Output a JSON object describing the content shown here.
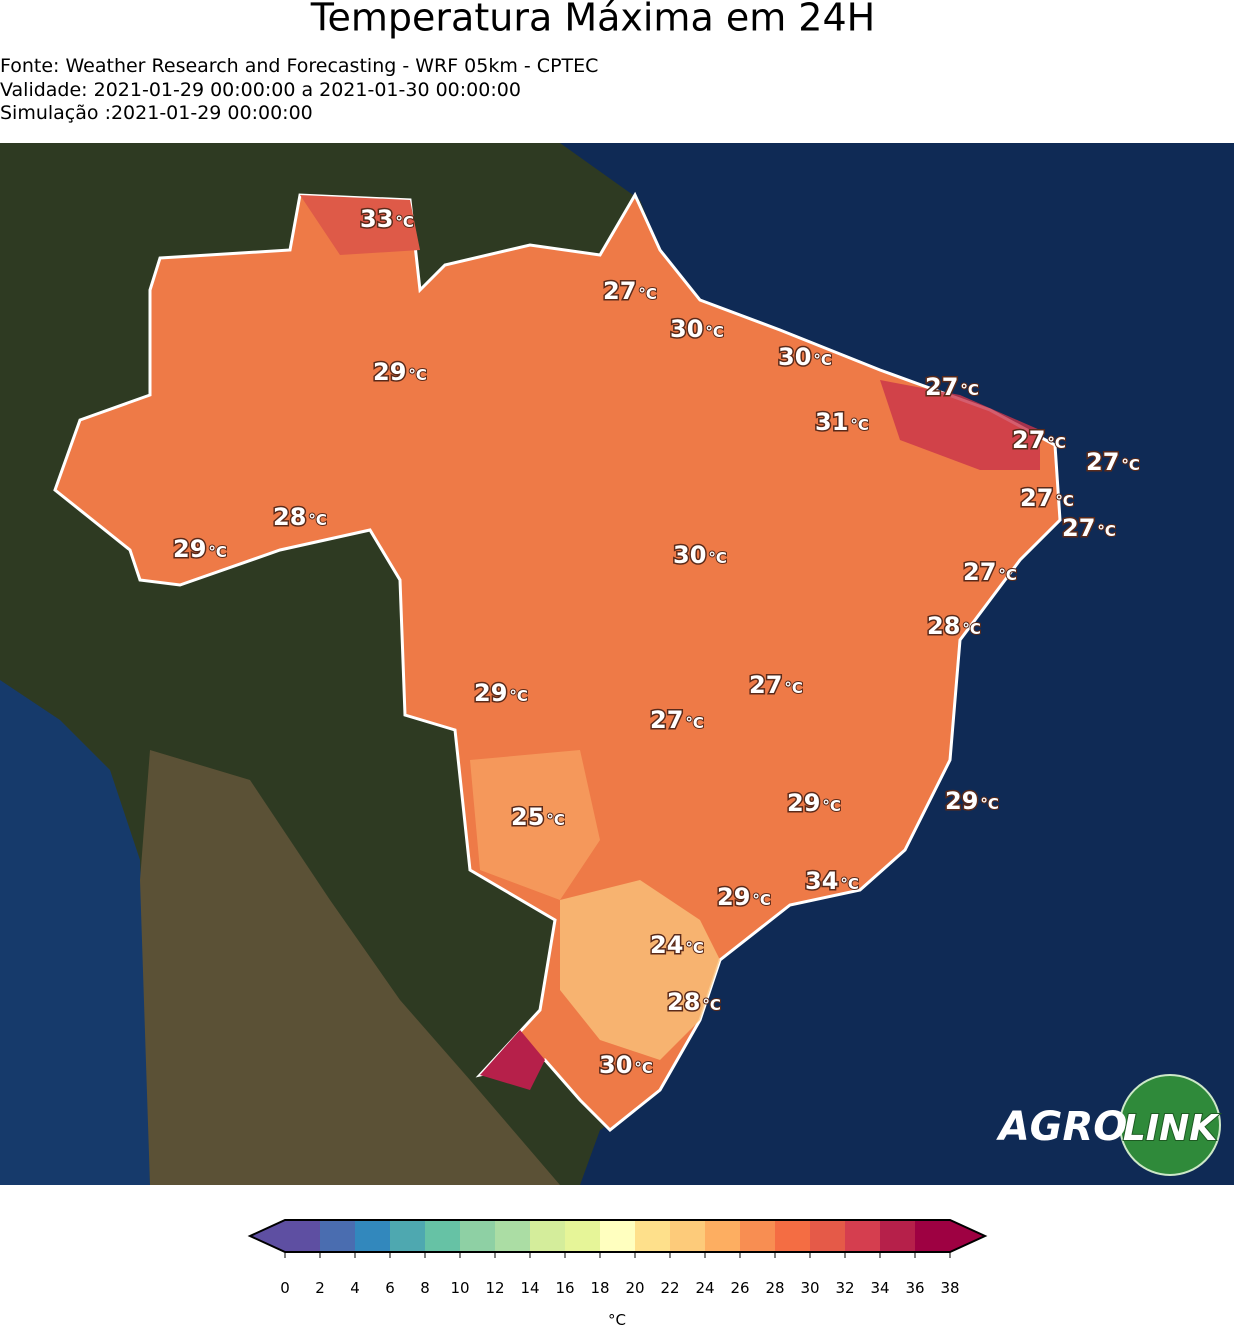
{
  "header": {
    "title": "Temperatura Máxima em 24H",
    "source": "Fonte: Weather Research and Forecasting - WRF 05km - CPTEC",
    "validity": "Validade: 2021-01-29 00:00:00 a 2021-01-30 00:00:00",
    "simulation": "Simulação :2021-01-29 00:00:00"
  },
  "unit": "°C",
  "labels": [
    33,
    27,
    30,
    30,
    29,
    27,
    31,
    27,
    27,
    27,
    28,
    29,
    30,
    27,
    27,
    28,
    27,
    29,
    27,
    29,
    29,
    25,
    34,
    29,
    24,
    28,
    30
  ],
  "colorbar": {
    "ticks": [
      0,
      2,
      4,
      6,
      8,
      10,
      12,
      14,
      16,
      18,
      20,
      22,
      24,
      26,
      28,
      30,
      32,
      34,
      36,
      38
    ],
    "colors": [
      "#5e4fa2",
      "#4a6db0",
      "#3288bd",
      "#4ea8b0",
      "#66c2a5",
      "#8ed0a4",
      "#abdda4",
      "#d4ed9b",
      "#e6f598",
      "#ffffbf",
      "#fee08b",
      "#fdcb7a",
      "#fdae61",
      "#f88e52",
      "#f46d43",
      "#e55a48",
      "#d53e4f",
      "#b6204a",
      "#9e0142"
    ],
    "unit": "°C"
  },
  "logo": {
    "part1": "AGRO",
    "part2": "LINK"
  }
}
